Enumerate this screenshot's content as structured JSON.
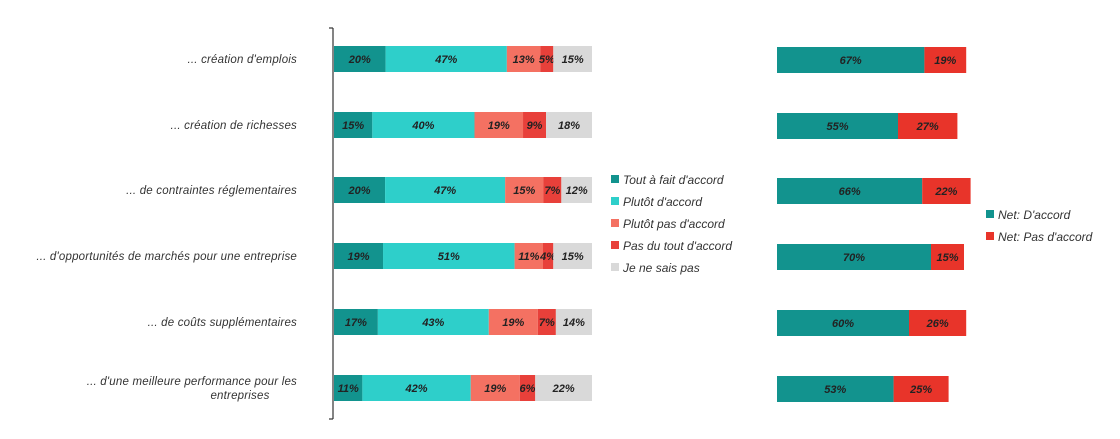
{
  "chart_data": [
    {
      "type": "bar",
      "orientation": "horizontal",
      "stacked": true,
      "categories": [
        "... création d'emplois",
        "... création de richesses",
        "... de contraintes réglementaires",
        "... d'opportunités de marchés pour une entreprise",
        "... de coûts supplémentaires",
        "... d'une meilleure performance pour les entreprises"
      ],
      "series": [
        {
          "name": "Tout à fait d'accord",
          "color": "#12938e",
          "values": [
            20,
            15,
            20,
            19,
            17,
            11
          ],
          "labels": [
            "20%",
            "15%",
            "20%",
            "19%",
            "17%",
            "11%"
          ]
        },
        {
          "name": "Plutôt d'accord",
          "color": "#2ecfca",
          "values": [
            47,
            40,
            47,
            51,
            43,
            42
          ],
          "labels": [
            "47%",
            "40%",
            "47%",
            "51%",
            "43%",
            "42%"
          ]
        },
        {
          "name": "Plutôt pas d'accord",
          "color": "#f47162",
          "values": [
            13,
            19,
            15,
            11,
            19,
            19
          ],
          "labels": [
            "13%",
            "19%",
            "15%",
            "11%",
            "19%",
            "19%"
          ]
        },
        {
          "name": "Pas du tout d'accord",
          "color": "#e8403a",
          "values": [
            5,
            9,
            7,
            4,
            7,
            6
          ],
          "labels": [
            "5%",
            "9%",
            "7%",
            "4%",
            "7%",
            "6%"
          ]
        },
        {
          "name": "Je ne sais pas",
          "color": "#d9d9d9",
          "values": [
            15,
            18,
            12,
            15,
            14,
            22
          ],
          "labels": [
            "15%",
            "18%",
            "12%",
            "15%",
            "14%",
            "22%"
          ]
        }
      ],
      "legend_position": "right",
      "grid": false
    },
    {
      "type": "bar",
      "orientation": "horizontal",
      "stacked": true,
      "categories": [
        "... création d'emplois",
        "... création de richesses",
        "... de contraintes réglementaires",
        "... d'opportunités de marchés pour une entreprise",
        "... de coûts supplémentaires",
        "... d'une meilleure performance pour les entreprises"
      ],
      "series": [
        {
          "name": "Net: D'accord",
          "color": "#12938e",
          "values": [
            67,
            55,
            66,
            70,
            60,
            53
          ],
          "labels": [
            "67%",
            "55%",
            "66%",
            "70%",
            "60%",
            "53%"
          ]
        },
        {
          "name": "Net: Pas d'accord",
          "color": "#e8342a",
          "values": [
            19,
            27,
            22,
            15,
            26,
            25
          ],
          "labels": [
            "19%",
            "27%",
            "22%",
            "15%",
            "26%",
            "25%"
          ]
        }
      ],
      "legend_position": "right",
      "grid": false
    }
  ]
}
